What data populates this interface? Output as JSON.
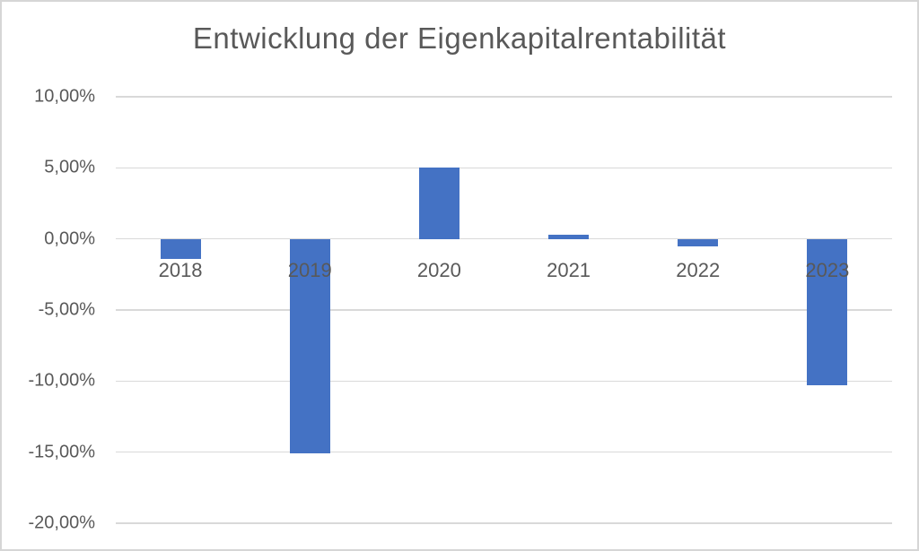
{
  "window": {
    "background_color": "#ffffff",
    "border_color": "#d6d6d6"
  },
  "chart_data": {
    "type": "bar",
    "title": "Entwicklung der Eigenkapitalrentabilität",
    "categories": [
      "2018",
      "2019",
      "2020",
      "2021",
      "2022",
      "2023"
    ],
    "values": [
      -1.4,
      -15.1,
      5.0,
      0.3,
      -0.5,
      -10.3
    ],
    "unit": "%",
    "value_format": "german_percent_two_decimals",
    "xlabel": "",
    "ylabel": "",
    "ylim": [
      -20,
      10
    ],
    "ytick_step": 5,
    "ytick_values": [
      10,
      5,
      0,
      -5,
      -10,
      -15,
      -20
    ],
    "ytick_labels": [
      "10,00%",
      "5,00%",
      "0,00%",
      "-5,00%",
      "-10,00%",
      "-15,00%",
      "-20,00%"
    ],
    "grid": "horizontal-only",
    "legend": false,
    "bar_color": "#4472C4",
    "text_color": "#595959",
    "gridline_color": "#d9d9d9"
  }
}
